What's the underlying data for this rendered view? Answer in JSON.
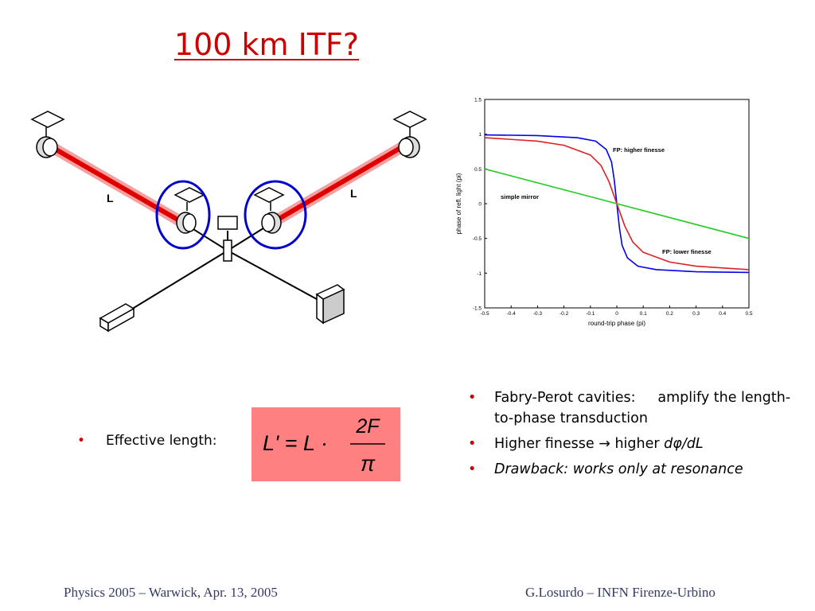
{
  "slide": {
    "title": "100 km ITF?",
    "left_bullet": {
      "bullet": "•",
      "text": "Effective length:"
    },
    "formula": {
      "lhs": "L' = L ·",
      "numerator": "2F",
      "denominator": "π"
    },
    "right_bullets": [
      {
        "bullet": "•",
        "part1": "Fabry-Perot cavities:",
        "part2": "amplify the length-to-phase transduction"
      },
      {
        "bullet": "•",
        "part1": "Higher finesse",
        "arrow": "→",
        "part2": "higher",
        "part3": "dφ/dL"
      },
      {
        "bullet": "•",
        "text": "Drawback: works only at resonance"
      }
    ],
    "diagram_labels": {
      "left": "L",
      "right": "L"
    },
    "footer_left": "Physics 2005 – Warwick, Apr. 13, 2005",
    "footer_right": "G.Losurdo – INFN Firenze-Urbino"
  },
  "chart_data": {
    "type": "line",
    "xlabel": "round-trip phase (pi)",
    "ylabel": "phase of refl. light (pi)",
    "xlim": [
      -0.5,
      0.5
    ],
    "ylim": [
      -1.5,
      1.5
    ],
    "xticks": [
      "-0.5",
      "-0.4",
      "-0.3",
      "-0.2",
      "-0.1",
      "0",
      "0.1",
      "0.2",
      "0.3",
      "0.4",
      "0.5"
    ],
    "yticks": [
      "1.5",
      "1",
      "0.5",
      "0",
      "-0.5",
      "-1",
      "-1.5"
    ],
    "grid": false,
    "series": [
      {
        "name": "FP: higher finesse",
        "color": "#0000ee",
        "x": [
          -0.5,
          -0.3,
          -0.15,
          -0.08,
          -0.04,
          -0.02,
          -0.01,
          0,
          0.01,
          0.02,
          0.04,
          0.08,
          0.15,
          0.3,
          0.5
        ],
        "y": [
          0.99,
          0.98,
          0.95,
          0.9,
          0.78,
          0.6,
          0.35,
          0,
          -0.35,
          -0.6,
          -0.78,
          -0.9,
          -0.95,
          -0.98,
          -0.99
        ]
      },
      {
        "name": "FP: lower finesse",
        "color": "#dd2222",
        "x": [
          -0.5,
          -0.3,
          -0.2,
          -0.1,
          -0.06,
          -0.03,
          0,
          0.03,
          0.06,
          0.1,
          0.2,
          0.3,
          0.5
        ],
        "y": [
          0.95,
          0.9,
          0.84,
          0.7,
          0.55,
          0.32,
          0,
          -0.32,
          -0.55,
          -0.7,
          -0.84,
          -0.9,
          -0.95
        ]
      },
      {
        "name": "simple mirror",
        "color": "#22cc22",
        "x": [
          -0.5,
          0.5
        ],
        "y": [
          0.5,
          -0.5
        ]
      }
    ],
    "annotations": [
      "FP: higher finesse",
      "FP: lower finesse",
      "simple mirror"
    ]
  }
}
